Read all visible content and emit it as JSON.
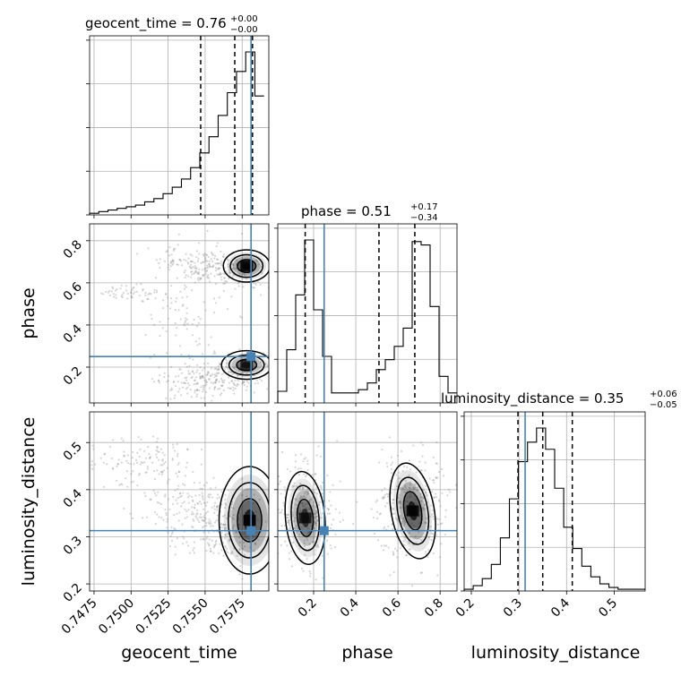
{
  "chart_data": {
    "type": "corner",
    "parameters": [
      {
        "name": "geocent_time",
        "axis_label": "geocent_time",
        "title_prefix": "geocent_time = 0.76",
        "title_plus": "+0.00",
        "title_minus": "−0.00",
        "range": [
          0.7472,
          0.7593
        ],
        "ticks": [
          0.7475,
          0.75,
          0.7525,
          0.755,
          0.7575
        ],
        "tick_labels": [
          "0.7475",
          "0.7500",
          "0.7525",
          "0.7550",
          "0.7575"
        ],
        "truth": 0.7581,
        "quantiles": [
          0.7547,
          0.757,
          0.7582
        ],
        "hist_edges_start": 0.7472,
        "hist_bin_width": 0.00062,
        "hist_counts": [
          1,
          2,
          3,
          4,
          5,
          6,
          8,
          10,
          13,
          17,
          22,
          29,
          38,
          48,
          61,
          75,
          88,
          100,
          73
        ]
      },
      {
        "name": "phase",
        "axis_label": "phase",
        "title_prefix": "phase = 0.51",
        "title_plus": "+0.17",
        "title_minus": "−0.34",
        "range": [
          0.03,
          0.88
        ],
        "ticks": [
          0.2,
          0.4,
          0.6,
          0.8
        ],
        "tick_labels": [
          "0.2",
          "0.4",
          "0.6",
          "0.8"
        ],
        "truth": 0.25,
        "quantiles": [
          0.16,
          0.51,
          0.68
        ],
        "hist_edges_start": 0.03,
        "hist_bin_width": 0.0425,
        "hist_counts": [
          7,
          32,
          65,
          98,
          56,
          28,
          6,
          6,
          6,
          8,
          12,
          20,
          26,
          34,
          45,
          97,
          95,
          58,
          16,
          6
        ]
      },
      {
        "name": "luminosity_distance",
        "axis_label": "luminosity_distance",
        "title_prefix": "luminosity_distance = 0.35",
        "title_plus": "+0.06",
        "title_minus": "−0.05",
        "range": [
          0.185,
          0.565
        ],
        "ticks": [
          0.2,
          0.3,
          0.4,
          0.5
        ],
        "tick_labels": [
          "0.2",
          "0.3",
          "0.4",
          "0.5"
        ],
        "truth": 0.313,
        "quantiles": [
          0.298,
          0.35,
          0.412
        ],
        "hist_edges_start": 0.185,
        "hist_bin_width": 0.019,
        "hist_counts": [
          1,
          3,
          7,
          15,
          30,
          52,
          73,
          84,
          92,
          80,
          58,
          36,
          24,
          14,
          8,
          4,
          2,
          1,
          1,
          1
        ]
      }
    ],
    "truth_color": "#4682b4",
    "grid": true,
    "joint": {
      "phase_vs_geocent_time": {
        "density_peaks": [
          {
            "x": 0.7578,
            "y": 0.68,
            "weight": 1.0
          },
          {
            "x": 0.7578,
            "y": 0.2,
            "weight": 0.85
          }
        ]
      },
      "luminosity_distance_vs_geocent_time": {
        "density_peaks": [
          {
            "x": 0.758,
            "y": 0.33,
            "weight": 1.0
          }
        ]
      },
      "luminosity_distance_vs_phase": {
        "density_peaks": [
          {
            "x": 0.16,
            "y": 0.34,
            "weight": 0.9
          },
          {
            "x": 0.67,
            "y": 0.355,
            "weight": 1.0
          }
        ]
      }
    }
  }
}
